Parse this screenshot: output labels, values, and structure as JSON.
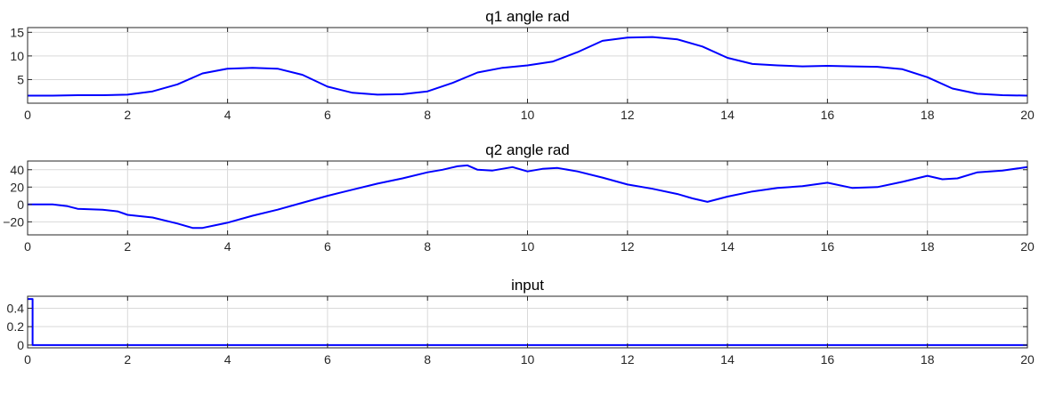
{
  "colors": {
    "line": "#0000ff",
    "grid": "#d9d9d9",
    "axis": "#262626",
    "background": "#ffffff"
  },
  "chart_data": [
    {
      "type": "line",
      "title": "q1 angle rad",
      "xlabel": "",
      "ylabel": "",
      "xlim": [
        0,
        20
      ],
      "ylim": [
        0,
        16
      ],
      "xticks": [
        0,
        2,
        4,
        6,
        8,
        10,
        12,
        14,
        16,
        18,
        20
      ],
      "yticks": [
        5,
        10,
        15
      ],
      "grid": true,
      "series": [
        {
          "x": [
            0,
            0.5,
            1,
            1.5,
            2,
            2.5,
            3,
            3.5,
            4,
            4.5,
            5,
            5.5,
            6,
            6.5,
            7,
            7.5,
            8,
            8.5,
            9,
            9.5,
            10,
            10.5,
            11,
            11.5,
            12,
            12.5,
            13,
            13.5,
            14,
            14.5,
            15,
            15.5,
            16,
            16.5,
            17,
            17.5,
            18,
            18.5,
            19,
            19.5,
            20
          ],
          "y": [
            1.6,
            1.6,
            1.7,
            1.7,
            1.8,
            2.5,
            4.0,
            6.3,
            7.3,
            7.5,
            7.3,
            6.0,
            3.5,
            2.2,
            1.8,
            1.9,
            2.5,
            4.3,
            6.5,
            7.5,
            8.0,
            8.8,
            10.8,
            13.2,
            13.9,
            14.0,
            13.5,
            12.0,
            9.6,
            8.3,
            8.0,
            7.8,
            7.9,
            7.8,
            7.7,
            7.2,
            5.5,
            3.1,
            2.0,
            1.7,
            1.6
          ]
        }
      ]
    },
    {
      "type": "line",
      "title": "q2 angle rad",
      "xlabel": "",
      "ylabel": "",
      "xlim": [
        0,
        20
      ],
      "ylim": [
        -35,
        50
      ],
      "xticks": [
        0,
        2,
        4,
        6,
        8,
        10,
        12,
        14,
        16,
        18,
        20
      ],
      "yticks": [
        -20,
        0,
        20,
        40
      ],
      "grid": true,
      "series": [
        {
          "x": [
            0,
            0.5,
            0.8,
            1,
            1.5,
            1.8,
            2,
            2.5,
            3,
            3.3,
            3.5,
            4,
            4.5,
            5,
            5.5,
            6,
            6.5,
            7,
            7.5,
            8,
            8.3,
            8.6,
            8.8,
            9,
            9.3,
            9.7,
            10,
            10.3,
            10.6,
            11,
            11.5,
            12,
            12.5,
            13,
            13.3,
            13.6,
            14,
            14.5,
            15,
            15.5,
            16,
            16.5,
            17,
            17.5,
            18,
            18.3,
            18.6,
            19,
            19.5,
            20
          ],
          "y": [
            0,
            0,
            -2,
            -5,
            -6,
            -8,
            -12,
            -15,
            -22,
            -27,
            -27,
            -21,
            -13,
            -6,
            2,
            10,
            17,
            24,
            30,
            37,
            40,
            44,
            45,
            40,
            39,
            43,
            38,
            41,
            42,
            38,
            31,
            23,
            18,
            12,
            7,
            3,
            9,
            15,
            19,
            21,
            25,
            19,
            20,
            26,
            33,
            29,
            30,
            37,
            39,
            43
          ]
        }
      ]
    },
    {
      "type": "line",
      "title": "input",
      "xlabel": "",
      "ylabel": "",
      "xlim": [
        0,
        20
      ],
      "ylim": [
        -0.03,
        0.53
      ],
      "xticks": [
        0,
        2,
        4,
        6,
        8,
        10,
        12,
        14,
        16,
        18,
        20
      ],
      "yticks": [
        0,
        0.2,
        0.4
      ],
      "grid": true,
      "series": [
        {
          "x": [
            0,
            0.1,
            0.1,
            20
          ],
          "y": [
            0.5,
            0.5,
            0,
            0
          ]
        }
      ]
    }
  ]
}
